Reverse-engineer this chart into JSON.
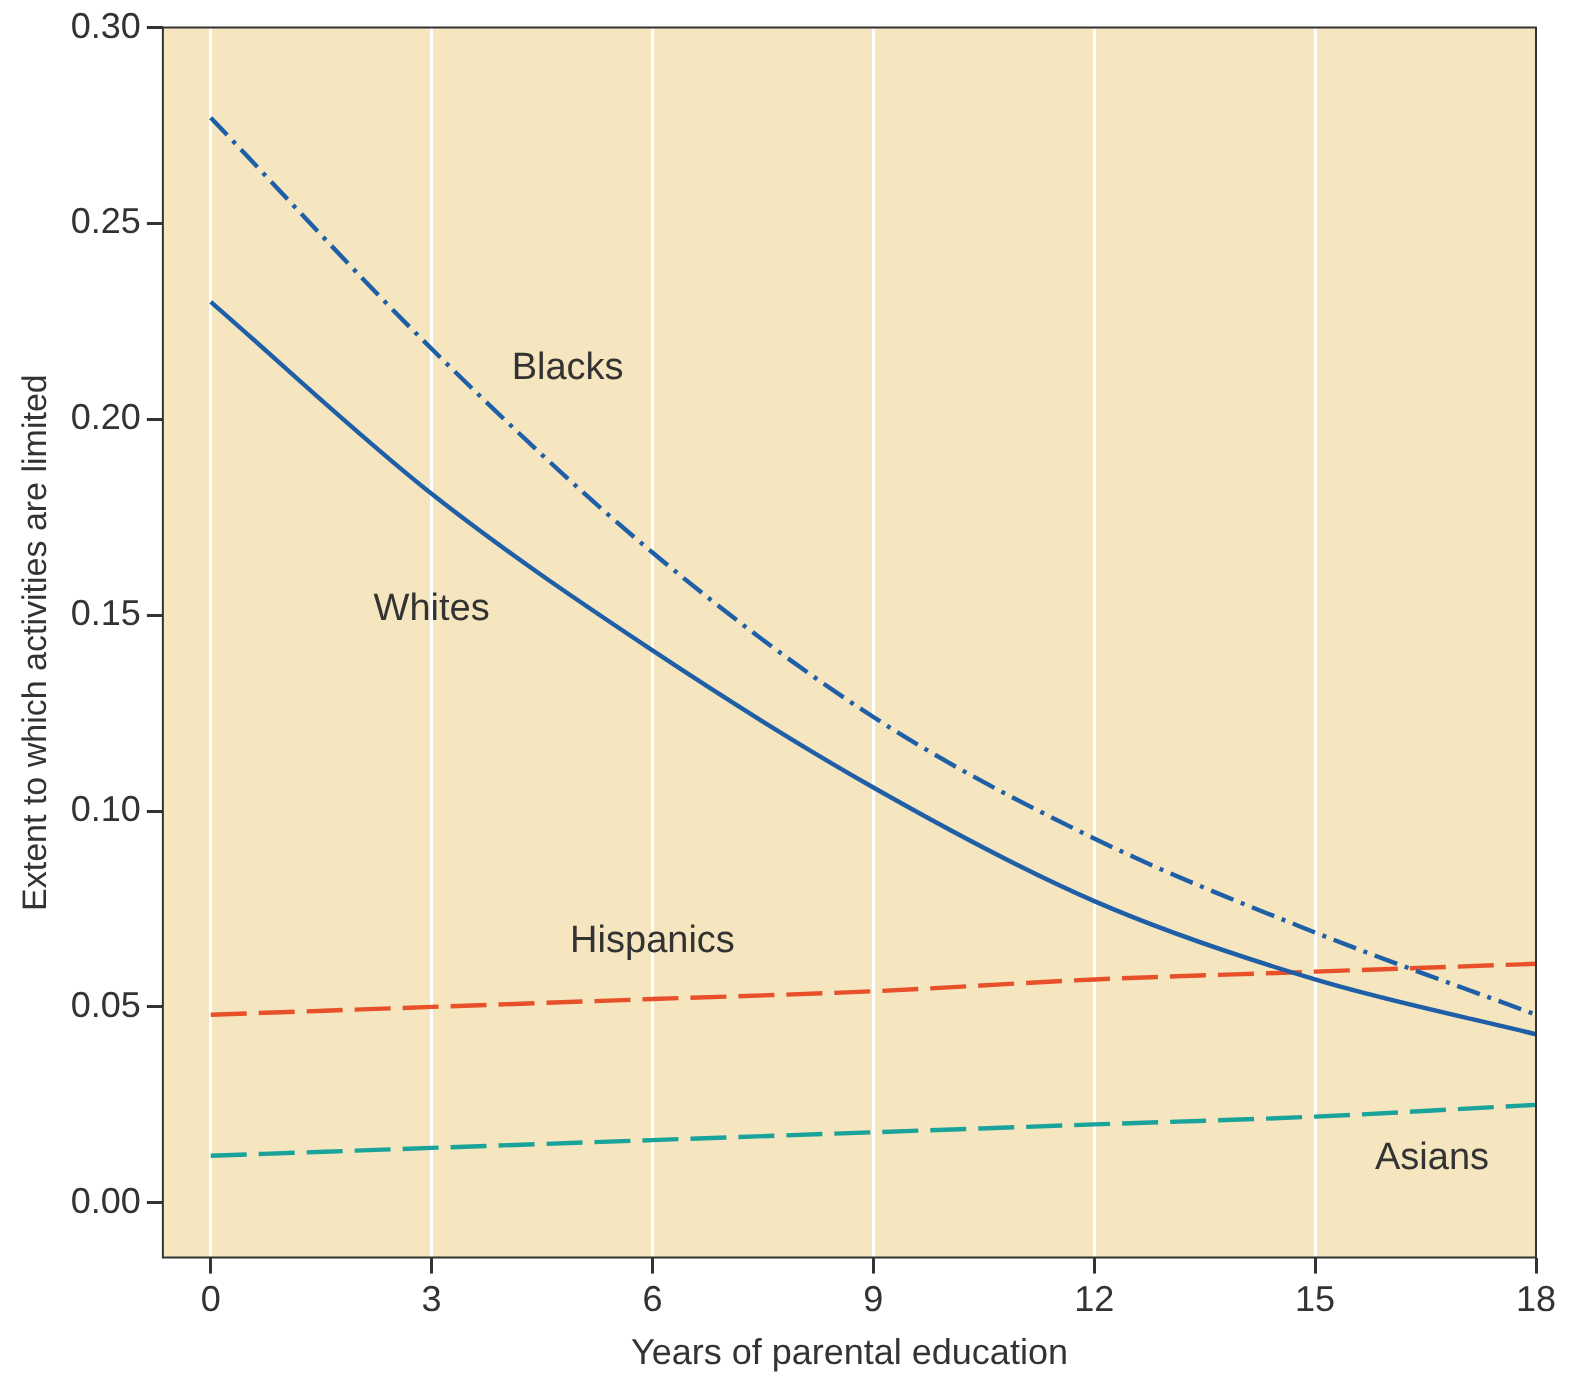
{
  "chart_data": {
    "type": "line",
    "xlabel": "Years of parental education",
    "ylabel": "Extent to which activities are limited",
    "x": [
      0,
      3,
      6,
      9,
      12,
      15,
      18
    ],
    "series": [
      {
        "name": "Blacks",
        "color": "#1f5fa8",
        "line_style": "dashdot",
        "values": [
          0.277,
          0.218,
          0.166,
          0.124,
          0.093,
          0.069,
          0.048
        ]
      },
      {
        "name": "Whites",
        "color": "#1f5fa8",
        "line_style": "solid",
        "values": [
          0.23,
          0.181,
          0.141,
          0.106,
          0.077,
          0.057,
          0.043
        ]
      },
      {
        "name": "Hispanics",
        "color": "#e8502a",
        "line_style": "dashed",
        "values": [
          0.048,
          0.05,
          0.052,
          0.054,
          0.057,
          0.059,
          0.061
        ]
      },
      {
        "name": "Asians",
        "color": "#1aa39a",
        "line_style": "dashed",
        "values": [
          0.012,
          0.014,
          0.016,
          0.018,
          0.02,
          0.022,
          0.025
        ]
      }
    ],
    "xlim": [
      -0.65,
      18
    ],
    "xticks": [
      0,
      3,
      6,
      9,
      12,
      15,
      18
    ],
    "ylim": [
      -0.014,
      0.3
    ],
    "yticks": [
      {
        "value": 0,
        "label": "0.00"
      },
      {
        "value": 0.05,
        "label": "0.05"
      },
      {
        "value": 0.1,
        "label": "0.10"
      },
      {
        "value": 0.15,
        "label": "0.15"
      },
      {
        "value": 0.2,
        "label": "0.20"
      },
      {
        "value": 0.25,
        "label": "0.25"
      },
      {
        "value": 0.3,
        "label": "0.30"
      }
    ],
    "grid": "x",
    "legend": false,
    "marker": "none"
  }
}
